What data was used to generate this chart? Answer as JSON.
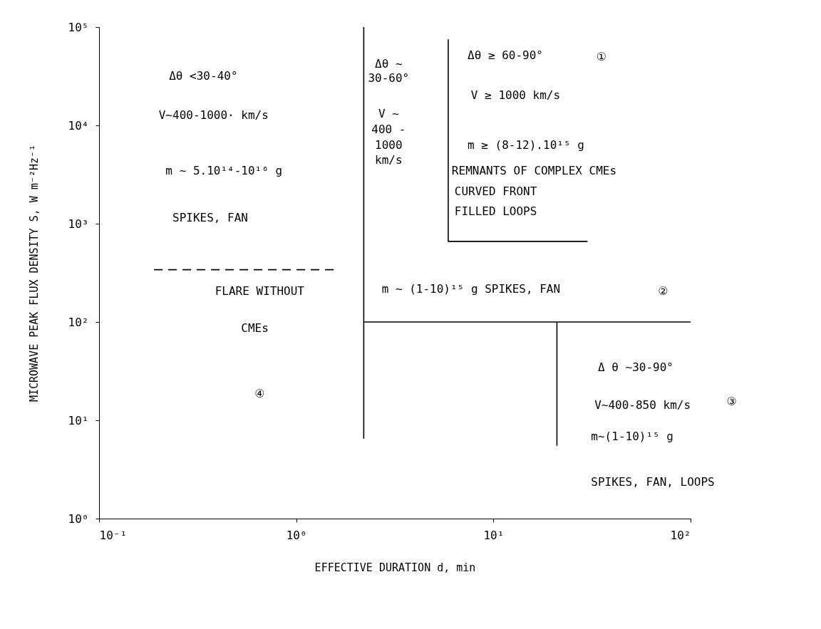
{
  "chart_data": {
    "type": "line",
    "xlabel": "EFFECTIVE DURATION  d, min",
    "ylabel": "MICROWAVE PEAK FLUX DENSITY  S, W m⁻²Hz⁻¹",
    "log": "xy",
    "grid": false,
    "marker": "none",
    "xlim": [
      0.1,
      100
    ],
    "ylim": [
      1,
      100000
    ],
    "xticks": [
      {
        "value": 0.1,
        "label": "10⁻¹"
      },
      {
        "value": 1,
        "label": "10⁰"
      },
      {
        "value": 10,
        "label": "10¹"
      },
      {
        "value": 100,
        "label": "10²"
      }
    ],
    "yticks": [
      {
        "value": 1,
        "label": "10⁰"
      },
      {
        "value": 10,
        "label": "10¹"
      },
      {
        "value": 100,
        "label": "10²"
      },
      {
        "value": 1000,
        "label": "10³"
      },
      {
        "value": 10000,
        "label": "10⁴"
      },
      {
        "value": 100000,
        "label": "10⁵"
      }
    ],
    "series": [
      {
        "color": "#000000",
        "line_style": "solid",
        "x": [
          2.2,
          2.2
        ],
        "values": [
          100000,
          6.5
        ]
      },
      {
        "color": "#000000",
        "line_style": "solid",
        "x": [
          2.2,
          100
        ],
        "values": [
          100,
          100
        ]
      },
      {
        "color": "#000000",
        "line_style": "solid",
        "x": [
          21,
          21
        ],
        "values": [
          100,
          5.5
        ]
      },
      {
        "color": "#000000",
        "line_style": "solid",
        "x": [
          5.9,
          5.9,
          30
        ],
        "values": [
          75000,
          660,
          660
        ]
      },
      {
        "color": "#000000",
        "line_style": "dashed",
        "x": [
          0.19,
          1.55
        ],
        "values": [
          340,
          340
        ]
      }
    ],
    "annotations": [
      "Δθ <30-40°",
      "V~400-1000· km/s",
      "m ~ 5.10¹⁴-10¹⁶ g",
      "SPIKES, FAN",
      "FLARE WITHOUT",
      "CMEs",
      "④",
      "Δθ ~",
      "30-60°",
      "V ~",
      "400 -",
      "1000",
      "km/s",
      "Δθ ≥ 60-90°",
      "①",
      "V ≥  1000 km/s",
      "m ≥  (8-12).10¹⁵ g",
      "REMNANTS OF COMPLEX CMEs",
      "CURVED FRONT",
      "FILLED LOOPS",
      "m ~ (1-10)¹⁵ g  SPIKES, FAN",
      "②",
      "Δ θ ~30-90°",
      "V~400-850 km/s",
      "m~(1-10)¹⁵ g",
      "③",
      "SPIKES, FAN, LOOPS"
    ]
  }
}
